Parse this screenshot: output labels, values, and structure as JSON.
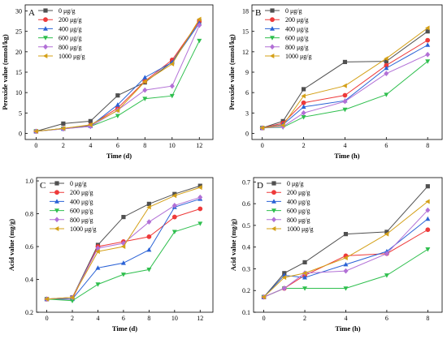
{
  "chart_data": [
    {
      "panel": "A",
      "type": "line",
      "xlabel": "Time (d)",
      "ylabel": "Peroxide value (mmol/kg)",
      "x": [
        0,
        2,
        4,
        6,
        8,
        10,
        12
      ],
      "xticks": [
        "0",
        "2",
        "4",
        "6",
        "8",
        "10",
        "12"
      ],
      "yticks": [
        "0",
        "5",
        "10",
        "15",
        "20",
        "25",
        "30"
      ],
      "xlim": [
        -0.8,
        13
      ],
      "ylim": [
        -1.5,
        31.5
      ],
      "legend_position": "top-left",
      "grid": false,
      "series": [
        {
          "name": "0 μg/g",
          "color": "#505050",
          "marker": "square",
          "values": [
            0.5,
            2.4,
            3.0,
            9.3,
            12.5,
            17.5,
            27.5
          ]
        },
        {
          "name": "200 μg/g",
          "color": "#ee3a3a",
          "marker": "circle",
          "values": [
            0.5,
            1.2,
            2.0,
            6.2,
            12.8,
            18.0,
            27.5
          ]
        },
        {
          "name": "400 μg/g",
          "color": "#2a62d6",
          "marker": "triangle-up",
          "values": [
            0.5,
            1.1,
            1.8,
            7.0,
            13.7,
            17.4,
            27.0
          ]
        },
        {
          "name": "600 μg/g",
          "color": "#2fbf4e",
          "marker": "triangle-down",
          "values": [
            0.5,
            1.2,
            1.7,
            4.3,
            8.5,
            9.2,
            22.7
          ]
        },
        {
          "name": "800 μg/g",
          "color": "#b270d6",
          "marker": "diamond",
          "values": [
            0.5,
            1.1,
            1.7,
            5.7,
            10.6,
            11.6,
            26.5
          ]
        },
        {
          "name": "1000 μg/g",
          "color": "#d4a017",
          "marker": "triangle-left",
          "values": [
            0.5,
            1.2,
            2.1,
            5.6,
            12.7,
            17.0,
            28.0
          ]
        }
      ]
    },
    {
      "panel": "B",
      "type": "line",
      "xlabel": "Time (h)",
      "ylabel": "Peroxide value (mmol/kg)",
      "x": [
        0,
        1,
        2,
        4,
        6,
        8
      ],
      "xticks": [
        "0",
        "2",
        "4",
        "6",
        "8"
      ],
      "xtick_values": [
        0,
        2,
        4,
        6,
        8
      ],
      "yticks": [
        "0",
        "3",
        "6",
        "9",
        "12",
        "15",
        "18"
      ],
      "xlim": [
        -0.5,
        8.7
      ],
      "ylim": [
        -0.9,
        18.9
      ],
      "legend_position": "top-left",
      "grid": false,
      "series": [
        {
          "name": "0 μg/g",
          "color": "#505050",
          "marker": "square",
          "values": [
            0.8,
            1.8,
            6.5,
            10.5,
            10.6,
            15.0
          ]
        },
        {
          "name": "200 μg/g",
          "color": "#ee3a3a",
          "marker": "circle",
          "values": [
            0.8,
            1.5,
            4.5,
            5.6,
            10.0,
            13.7
          ]
        },
        {
          "name": "400 μg/g",
          "color": "#2a62d6",
          "marker": "triangle-up",
          "values": [
            0.8,
            1.3,
            3.9,
            4.8,
            9.6,
            13.0
          ]
        },
        {
          "name": "600 μg/g",
          "color": "#2fbf4e",
          "marker": "triangle-down",
          "values": [
            0.8,
            0.9,
            2.4,
            3.5,
            5.7,
            10.6
          ]
        },
        {
          "name": "800 μg/g",
          "color": "#b270d6",
          "marker": "diamond",
          "values": [
            0.8,
            1.0,
            3.0,
            4.7,
            8.8,
            11.6
          ]
        },
        {
          "name": "1000 μg/g",
          "color": "#d4a017",
          "marker": "triangle-left",
          "values": [
            0.8,
            1.2,
            5.5,
            7.0,
            11.0,
            15.5
          ]
        }
      ]
    },
    {
      "panel": "C",
      "type": "line",
      "xlabel": "Time (d)",
      "ylabel": "Acid value (mg/g)",
      "x": [
        0,
        2,
        4,
        6,
        8,
        10,
        12
      ],
      "xticks": [
        "0",
        "2",
        "4",
        "6",
        "8",
        "10",
        "12"
      ],
      "yticks": [
        "0.2",
        "0.4",
        "0.6",
        "0.8",
        "1.0"
      ],
      "xlim": [
        -0.8,
        13
      ],
      "ylim": [
        0.2,
        1.02
      ],
      "legend_position": "top-left",
      "grid": false,
      "series": [
        {
          "name": "0 μg/g",
          "color": "#505050",
          "marker": "square",
          "values": [
            0.28,
            0.29,
            0.61,
            0.78,
            0.86,
            0.92,
            0.97
          ]
        },
        {
          "name": "200 μg/g",
          "color": "#ee3a3a",
          "marker": "circle",
          "values": [
            0.28,
            0.28,
            0.6,
            0.63,
            0.66,
            0.78,
            0.83
          ]
        },
        {
          "name": "400 μg/g",
          "color": "#2a62d6",
          "marker": "triangle-up",
          "values": [
            0.28,
            0.28,
            0.47,
            0.5,
            0.58,
            0.84,
            0.89
          ]
        },
        {
          "name": "600 μg/g",
          "color": "#2fbf4e",
          "marker": "triangle-down",
          "values": [
            0.28,
            0.27,
            0.37,
            0.43,
            0.46,
            0.69,
            0.74
          ]
        },
        {
          "name": "800 μg/g",
          "color": "#b270d6",
          "marker": "diamond",
          "values": [
            0.28,
            0.29,
            0.59,
            0.62,
            0.75,
            0.85,
            0.9
          ]
        },
        {
          "name": "1000 μg/g",
          "color": "#d4a017",
          "marker": "triangle-left",
          "values": [
            0.28,
            0.29,
            0.57,
            0.6,
            0.84,
            0.91,
            0.96
          ]
        }
      ]
    },
    {
      "panel": "D",
      "type": "line",
      "xlabel": "Time (h)",
      "ylabel": "Acid value (mg/g)",
      "x": [
        0,
        1,
        2,
        4,
        6,
        8
      ],
      "xticks": [
        "0",
        "2",
        "4",
        "6",
        "8"
      ],
      "xtick_values": [
        0,
        2,
        4,
        6,
        8
      ],
      "yticks": [
        "0.1",
        "0.2",
        "0.3",
        "0.4",
        "0.5",
        "0.6",
        "0.7"
      ],
      "xlim": [
        -0.5,
        8.7
      ],
      "ylim": [
        0.1,
        0.72
      ],
      "legend_position": "top-left",
      "grid": false,
      "series": [
        {
          "name": "0 μg/g",
          "color": "#505050",
          "marker": "square",
          "values": [
            0.17,
            0.28,
            0.33,
            0.46,
            0.47,
            0.68
          ]
        },
        {
          "name": "200 μg/g",
          "color": "#ee3a3a",
          "marker": "circle",
          "values": [
            0.17,
            0.21,
            0.27,
            0.36,
            0.37,
            0.48
          ]
        },
        {
          "name": "400 μg/g",
          "color": "#2a62d6",
          "marker": "triangle-up",
          "values": [
            0.17,
            0.27,
            0.26,
            0.32,
            0.38,
            0.53
          ]
        },
        {
          "name": "600 μg/g",
          "color": "#2fbf4e",
          "marker": "triangle-down",
          "values": [
            0.17,
            0.21,
            0.21,
            0.21,
            0.27,
            0.39
          ]
        },
        {
          "name": "800 μg/g",
          "color": "#b270d6",
          "marker": "diamond",
          "values": [
            0.17,
            0.21,
            0.28,
            0.29,
            0.37,
            0.57
          ]
        },
        {
          "name": "1000 μg/g",
          "color": "#d4a017",
          "marker": "triangle-left",
          "values": [
            0.17,
            0.26,
            0.28,
            0.35,
            0.46,
            0.61
          ]
        }
      ]
    }
  ]
}
